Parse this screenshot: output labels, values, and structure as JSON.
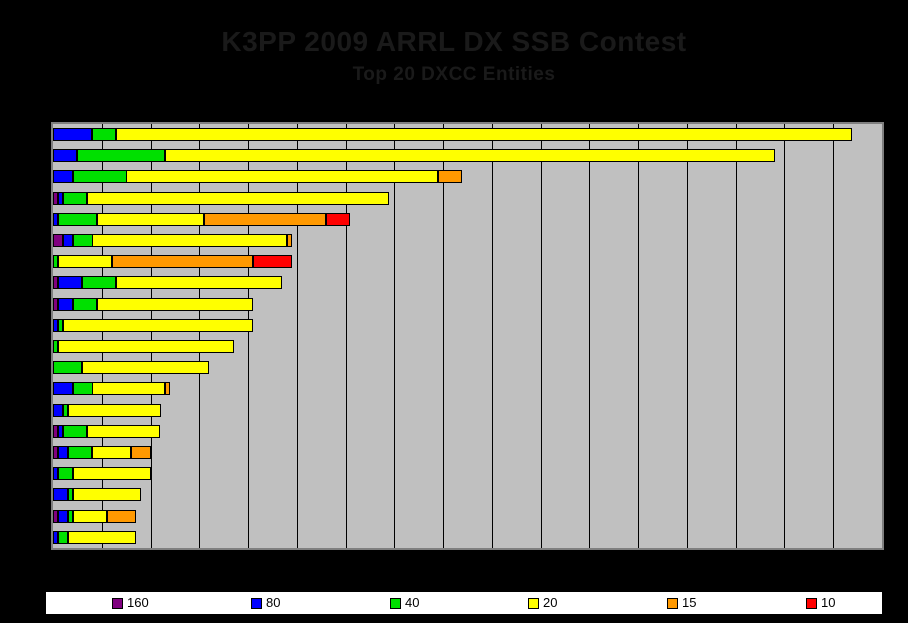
{
  "chart_data": {
    "type": "bar",
    "stacked": true,
    "orientation": "horizontal",
    "title": "K3PP 2009 ARRL DX SSB Contest",
    "subtitle": "Top 20 DXCC Entities",
    "categories": [
      "",
      "",
      "",
      "",
      "",
      "",
      "",
      "",
      "",
      "",
      "",
      "",
      "",
      "",
      "",
      "",
      "",
      "",
      "",
      ""
    ],
    "category_labels_visible": false,
    "x_tick_labels_visible": false,
    "xlim": [
      0,
      170
    ],
    "x_gridline_interval": 10,
    "grid": true,
    "legend_position": "bottom",
    "plot_background": "#c0c0c0",
    "plot_border_color": "#7f7f7f",
    "page_background": "#000000",
    "title_color": "#1a1a1a",
    "series": [
      {
        "name": "160",
        "color": "#800080",
        "values": [
          0,
          0,
          0,
          1,
          0,
          2,
          0,
          1,
          1,
          0,
          0,
          0,
          0,
          0,
          1,
          1,
          0,
          0,
          1,
          0
        ]
      },
      {
        "name": "80",
        "color": "#0000ff",
        "values": [
          8,
          5,
          4,
          1,
          1,
          2,
          0,
          5,
          3,
          1,
          0,
          0,
          4,
          2,
          1,
          2,
          1,
          3,
          2,
          1
        ]
      },
      {
        "name": "40",
        "color": "#00e000",
        "values": [
          5,
          18,
          11,
          5,
          8,
          4,
          1,
          7,
          5,
          1,
          1,
          6,
          4,
          1,
          5,
          5,
          3,
          1,
          1,
          2
        ]
      },
      {
        "name": "20",
        "color": "#ffff00",
        "values": [
          151,
          125,
          64,
          62,
          22,
          40,
          11,
          34,
          32,
          39,
          36,
          26,
          15,
          19,
          15,
          8,
          16,
          14,
          7,
          14
        ]
      },
      {
        "name": "15",
        "color": "#ff9900",
        "values": [
          0,
          0,
          5,
          0,
          25,
          1,
          29,
          0,
          0,
          0,
          0,
          0,
          1,
          0,
          0,
          4,
          0,
          0,
          6,
          0
        ]
      },
      {
        "name": "10",
        "color": "#ff0000",
        "values": [
          0,
          0,
          0,
          0,
          5,
          0,
          8,
          0,
          0,
          0,
          0,
          0,
          0,
          0,
          0,
          0,
          0,
          0,
          0,
          0
        ]
      }
    ]
  }
}
